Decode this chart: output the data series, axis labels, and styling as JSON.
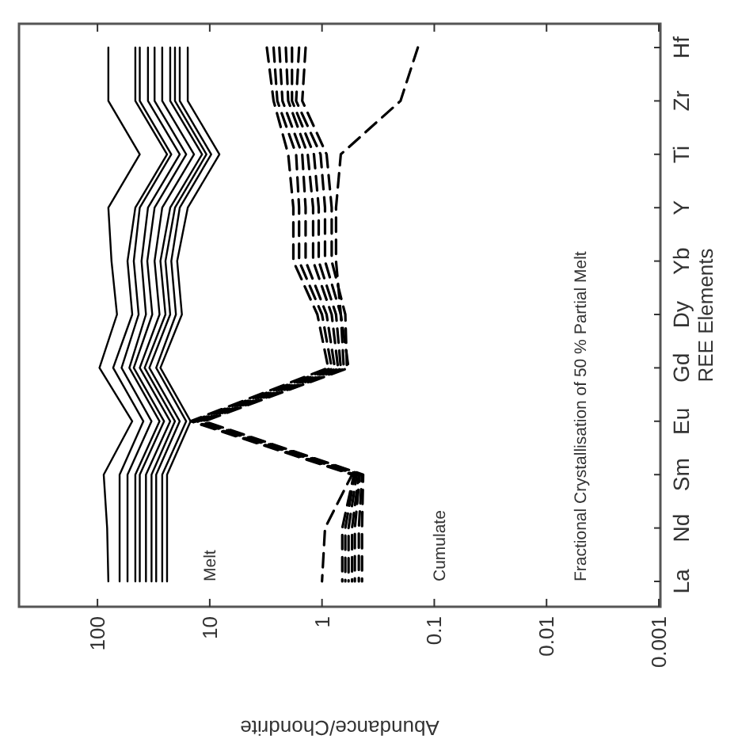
{
  "chart_data": {
    "type": "line",
    "orientation": "horizontal",
    "xlabel": "Abundance/Chondrite",
    "ylabel": "REE Elements",
    "categories": [
      "Hf",
      "Zr",
      "Ti",
      "Y",
      "Yb",
      "Dy",
      "Gd",
      "Eu",
      "Sm",
      "Nd",
      "La"
    ],
    "log": "x",
    "xlim": [
      500,
      0.001
    ],
    "xticks": [
      100,
      10,
      1,
      0.1,
      0.01,
      0.001
    ],
    "annotations": [
      "Melt",
      "Cumulate",
      "Fractional Crystallisation of 50 % Partial Melt"
    ],
    "series": [
      {
        "color": "#000000",
        "line_style": "solid",
        "values": [
          80,
          80,
          42,
          80,
          75,
          67,
          96,
          49,
          88,
          82,
          80
        ]
      },
      {
        "color": "#000000",
        "line_style": "solid",
        "values": [
          46,
          46,
          24,
          46,
          54,
          49,
          72.5,
          39,
          63.5,
          63.5,
          63.5
        ]
      },
      {
        "color": "#000000",
        "line_style": "solid",
        "values": [
          42,
          42,
          22,
          42,
          47.5,
          43,
          61,
          33,
          54,
          54,
          54
        ]
      },
      {
        "color": "#000000",
        "line_style": "solid",
        "values": [
          35.5,
          35.5,
          18.5,
          35.5,
          40.5,
          37,
          52,
          28,
          46,
          46,
          46
        ]
      },
      {
        "color": "#000000",
        "line_style": "solid",
        "values": [
          31,
          31,
          16.2,
          31,
          36,
          32.5,
          47.5,
          25.5,
          42,
          42,
          42
        ]
      },
      {
        "color": "#000000",
        "line_style": "solid",
        "values": [
          26.5,
          26.5,
          13.8,
          26.5,
          31,
          28,
          42,
          22.5,
          37,
          37,
          37
        ]
      },
      {
        "color": "#000000",
        "line_style": "solid",
        "values": [
          22.5,
          22.5,
          11.7,
          22.5,
          27.5,
          24.8,
          38,
          20.4,
          33,
          33,
          33
        ]
      },
      {
        "color": "#000000",
        "line_style": "solid",
        "values": [
          20.4,
          20.4,
          10.7,
          20.4,
          24.8,
          22.5,
          34.5,
          18.5,
          30,
          30,
          30
        ]
      },
      {
        "color": "#000000",
        "line_style": "solid",
        "values": [
          18.5,
          18.5,
          9.7,
          18.5,
          22,
          20,
          30,
          16.2,
          26.5,
          26.5,
          26.5
        ]
      },
      {
        "color": "#000000",
        "line_style": "solid",
        "values": [
          15.7,
          15.7,
          8.2,
          15.7,
          19.5,
          17.7,
          27.5,
          14.8,
          24,
          24,
          24
        ]
      },
      {
        "color": "#000000",
        "line_style": "dashed",
        "values": [
          3.1,
          2.7,
          2.0,
          1.8,
          1.8,
          1.1,
          0.88,
          14.8,
          0.54,
          0.94,
          1.0
        ]
      },
      {
        "color": "#000000",
        "line_style": "dashed",
        "values": [
          2.7,
          2.5,
          1.7,
          1.6,
          1.6,
          1.0,
          0.82,
          14.2,
          0.52,
          0.66,
          0.66
        ]
      },
      {
        "color": "#000000",
        "line_style": "dashed",
        "values": [
          2.4,
          2.25,
          1.5,
          1.4,
          1.4,
          0.91,
          0.77,
          13.7,
          0.51,
          0.62,
          0.62
        ]
      },
      {
        "color": "#000000",
        "line_style": "dashed",
        "values": [
          2.1,
          2.0,
          1.34,
          1.2,
          1.2,
          0.82,
          0.72,
          13.1,
          0.49,
          0.58,
          0.58
        ]
      },
      {
        "color": "#000000",
        "line_style": "dashed",
        "values": [
          1.85,
          1.85,
          1.18,
          1.07,
          1.07,
          0.75,
          0.68,
          12.6,
          0.47,
          0.54,
          0.54
        ]
      },
      {
        "color": "#000000",
        "line_style": "dashed",
        "values": [
          1.6,
          1.7,
          1.03,
          0.94,
          0.94,
          0.68,
          0.64,
          12.2,
          0.46,
          0.51,
          0.51
        ]
      },
      {
        "color": "#000000",
        "line_style": "dashed",
        "values": [
          1.4,
          1.5,
          0.91,
          0.82,
          0.82,
          0.62,
          0.6,
          11.7,
          0.44,
          0.47,
          0.47
        ]
      },
      {
        "color": "#000000",
        "line_style": "dashed",
        "values": [
          0.14,
          0.2,
          0.68,
          0.75,
          0.75,
          0.68,
          0.58,
          11.2,
          0.43,
          0.44,
          0.44
        ]
      }
    ]
  }
}
